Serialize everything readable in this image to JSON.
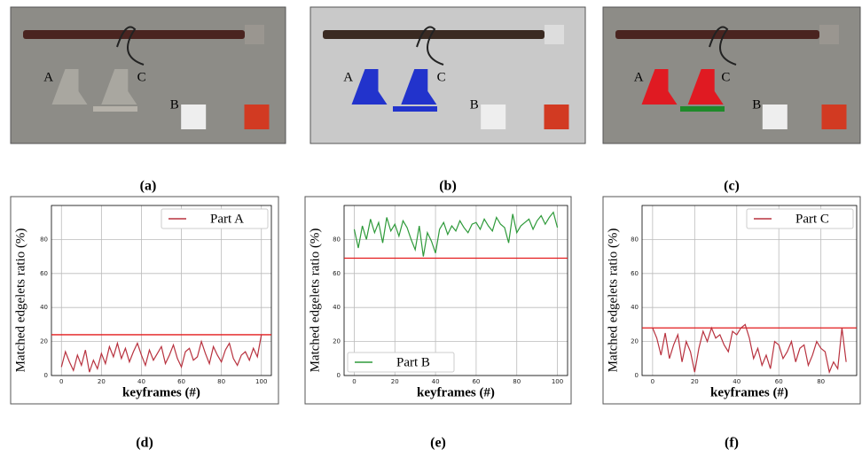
{
  "images": [
    {
      "caption": "(a)",
      "labels": [
        "A",
        "C",
        "B"
      ]
    },
    {
      "caption": "(b)",
      "labels": [
        "A",
        "C",
        "B"
      ]
    },
    {
      "caption": "(c)",
      "labels": [
        "A",
        "C",
        "B"
      ]
    }
  ],
  "chart_data": [
    {
      "type": "line",
      "caption": "(d)",
      "xlabel": "keyframes (#)",
      "ylabel": "Matched edgelets ratio (%)",
      "xlim": [
        -5,
        105
      ],
      "ylim": [
        0,
        100
      ],
      "xticks": [
        0,
        20,
        40,
        60,
        80,
        100
      ],
      "yticks": [
        0,
        20,
        40,
        60,
        80
      ],
      "grid": true,
      "legend": "upper right",
      "threshold": 24,
      "threshold_color": "#e31a1c",
      "series": [
        {
          "name": "Part A",
          "color": "#b8323f",
          "x": [
            0,
            2,
            4,
            6,
            8,
            10,
            12,
            14,
            16,
            18,
            20,
            22,
            24,
            26,
            28,
            30,
            32,
            34,
            36,
            38,
            40,
            42,
            44,
            46,
            48,
            50,
            52,
            54,
            56,
            58,
            60,
            62,
            64,
            66,
            68,
            70,
            72,
            74,
            76,
            78,
            80,
            82,
            84,
            86,
            88,
            90,
            92,
            94,
            96,
            98,
            100
          ],
          "values": [
            5,
            14,
            8,
            3,
            12,
            6,
            15,
            2,
            9,
            4,
            13,
            7,
            17,
            11,
            19,
            10,
            16,
            8,
            14,
            19,
            12,
            6,
            15,
            9,
            13,
            17,
            7,
            12,
            18,
            10,
            5,
            14,
            16,
            9,
            11,
            20,
            13,
            7,
            17,
            12,
            8,
            15,
            19,
            10,
            6,
            12,
            14,
            9,
            16,
            11,
            24
          ]
        }
      ]
    },
    {
      "type": "line",
      "caption": "(e)",
      "xlabel": "keyframes (#)",
      "ylabel": "Matched edgelets ratio (%)",
      "xlim": [
        -5,
        105
      ],
      "ylim": [
        0,
        100
      ],
      "xticks": [
        0,
        20,
        40,
        60,
        80,
        100
      ],
      "yticks": [
        0,
        20,
        40,
        60,
        80
      ],
      "grid": true,
      "legend": "lower left",
      "threshold": 69,
      "threshold_color": "#e31a1c",
      "series": [
        {
          "name": "Part B",
          "color": "#2e9a3a",
          "x": [
            0,
            2,
            4,
            6,
            8,
            10,
            12,
            14,
            16,
            18,
            20,
            22,
            24,
            26,
            28,
            30,
            32,
            34,
            36,
            38,
            40,
            42,
            44,
            46,
            48,
            50,
            52,
            54,
            56,
            58,
            60,
            62,
            64,
            66,
            68,
            70,
            72,
            74,
            76,
            78,
            80,
            82,
            84,
            86,
            88,
            90,
            92,
            94,
            96,
            98,
            100
          ],
          "values": [
            86,
            75,
            88,
            80,
            92,
            84,
            90,
            78,
            93,
            85,
            89,
            82,
            91,
            87,
            80,
            74,
            88,
            70,
            84,
            79,
            72,
            86,
            90,
            83,
            88,
            85,
            91,
            87,
            84,
            89,
            90,
            86,
            92,
            88,
            85,
            93,
            89,
            87,
            78,
            95,
            84,
            88,
            90,
            92,
            86,
            91,
            94,
            89,
            93,
            96,
            87
          ]
        }
      ]
    },
    {
      "type": "line",
      "caption": "(f)",
      "xlabel": "keyframes (#)",
      "ylabel": "Matched edgelets ratio (%)",
      "xlim": [
        -5,
        97
      ],
      "ylim": [
        0,
        100
      ],
      "xticks": [
        0,
        20,
        40,
        60,
        80
      ],
      "yticks": [
        0,
        20,
        40,
        60,
        80
      ],
      "grid": true,
      "legend": "upper right",
      "threshold": 28,
      "threshold_color": "#e31a1c",
      "series": [
        {
          "name": "Part C",
          "color": "#b8323f",
          "x": [
            0,
            2,
            4,
            6,
            8,
            10,
            12,
            14,
            16,
            18,
            20,
            22,
            24,
            26,
            28,
            30,
            32,
            34,
            36,
            38,
            40,
            42,
            44,
            46,
            48,
            50,
            52,
            54,
            56,
            58,
            60,
            62,
            64,
            66,
            68,
            70,
            72,
            74,
            76,
            78,
            80,
            82,
            84,
            86,
            88,
            90,
            92
          ],
          "values": [
            28,
            22,
            12,
            25,
            10,
            18,
            24,
            8,
            20,
            14,
            2,
            16,
            26,
            20,
            28,
            22,
            24,
            18,
            14,
            26,
            24,
            28,
            30,
            22,
            10,
            16,
            6,
            12,
            4,
            20,
            18,
            10,
            14,
            20,
            8,
            16,
            18,
            6,
            12,
            20,
            16,
            14,
            2,
            8,
            4,
            28,
            8
          ]
        }
      ]
    }
  ]
}
